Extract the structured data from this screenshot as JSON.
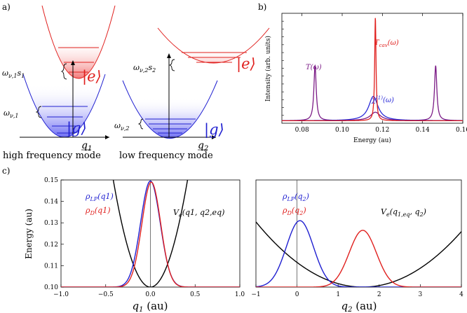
{
  "panel_labels": {
    "a": "a)",
    "b": "b)",
    "c": "c)"
  },
  "panel_a": {
    "left": {
      "caption": "high frequency mode",
      "axis_label": "q",
      "axis_sub": "1",
      "excited_label": "|e⟩",
      "ground_label": "|g⟩",
      "omega_shift_label": "ω",
      "omega_shift_sub": "ν,1",
      "omega_shift_tail": "s",
      "omega_shift_tail_sub": "1",
      "omega_label": "ω",
      "omega_sub": "ν,1"
    },
    "right": {
      "caption": "low frequency mode",
      "axis_label": "q",
      "axis_sub": "2",
      "excited_label": "|e⟩",
      "ground_label": "|g⟩",
      "omega_shift_label": "ω",
      "omega_shift_sub": "ν,2",
      "omega_shift_tail": "s",
      "omega_shift_tail_sub": "2",
      "omega_label": "ω",
      "omega_sub": "ν,2"
    },
    "colors": {
      "excited": "#e0201e",
      "ground": "#1f1fd0"
    }
  },
  "chart_data": [
    {
      "type": "line",
      "panel": "b",
      "xlabel": "Energy (au)",
      "ylabel": "Intensity (arb. units)",
      "xlim": [
        0.07,
        0.16
      ],
      "xticks": [
        "0.08",
        "0.10",
        "0.12",
        "0.14",
        "0.16"
      ],
      "series": [
        {
          "name": "T_cav(ω)",
          "label_main": "T",
          "label_sub": "cav",
          "label_tail": "(ω)",
          "color": "#e0201e",
          "peaks": [
            {
              "center": 0.1165,
              "height": 0.98,
              "width": 0.0004
            }
          ]
        },
        {
          "name": "T(ω)",
          "label_main": "T",
          "label_sub": "",
          "label_tail": "(ω)",
          "color": "#7b1b86",
          "peaks": [
            {
              "center": 0.0865,
              "height": 0.52,
              "width": 0.0007
            },
            {
              "center": 0.1465,
              "height": 0.52,
              "width": 0.0007
            },
            {
              "center": 0.1165,
              "height": 0.08,
              "width": 0.003
            }
          ]
        },
        {
          "name": "χ(1)(ω)",
          "label_main": "χ",
          "label_sup": "(1)",
          "label_tail": "(ω)",
          "color": "#2a2ad8",
          "peaks": [
            {
              "center": 0.1155,
              "height": 0.23,
              "width": 0.0028
            }
          ]
        }
      ]
    },
    {
      "type": "line",
      "panel": "c-left",
      "xlabel": "q1 (au)",
      "xlabel_main": "q",
      "xlabel_sub": "1",
      "xlabel_tail": " (au)",
      "ylabel": "Energy (au)",
      "xlim": [
        -1.0,
        1.0
      ],
      "ylim": [
        0.1,
        0.15
      ],
      "xticks": [
        "−1.0",
        "−0.5",
        "0.0",
        "0.5",
        "1.0"
      ],
      "yticks": [
        "0.10",
        "0.11",
        "0.12",
        "0.13",
        "0.14",
        "0.15"
      ],
      "series": [
        {
          "name": "V_e(q1, q2,eq)",
          "label_main": "V",
          "label_sub": "e",
          "label_tail": "(q",
          "label_args": "1, q2,eq)",
          "color": "#000000",
          "parabola": {
            "center": 0.0,
            "min": 0.1,
            "k": 0.29
          }
        },
        {
          "name": "ρ_LP(q1)",
          "label_main": "ρ",
          "label_sub": "LP",
          "label_tail": "(q1)",
          "color": "#1f1fd0",
          "gaussian": {
            "center": 0.0,
            "sigma": 0.11,
            "base": 0.1,
            "amp": 0.0495
          }
        },
        {
          "name": "ρ_D(q1)",
          "label_main": "ρ",
          "label_sub": "D",
          "label_tail": "(q1)",
          "color": "#e0201e",
          "gaussian": {
            "center": 0.01,
            "sigma": 0.105,
            "base": 0.1,
            "amp": 0.049
          }
        }
      ]
    },
    {
      "type": "line",
      "panel": "c-right",
      "xlabel": "q2 (au)",
      "xlabel_main": "q",
      "xlabel_sub": "2",
      "xlabel_tail": " (au)",
      "xlim": [
        -1,
        4
      ],
      "ylim": [
        0.1,
        0.15
      ],
      "xticks": [
        "−1",
        "0",
        "1",
        "2",
        "3",
        "4"
      ],
      "series": [
        {
          "name": "V_e(q1,eq, q2)",
          "color": "#000000",
          "parabola": {
            "center": 1.6,
            "min": 0.1,
            "k": 0.0045
          }
        },
        {
          "name": "ρ_LP(q2)",
          "color": "#1f1fd0",
          "gaussian": {
            "center": 0.07,
            "sigma": 0.33,
            "base": 0.1,
            "amp": 0.031
          }
        },
        {
          "name": "ρ_D(q2)",
          "color": "#e0201e",
          "gaussian": {
            "center": 1.6,
            "sigma": 0.33,
            "base": 0.1,
            "amp": 0.0265
          }
        }
      ]
    }
  ]
}
